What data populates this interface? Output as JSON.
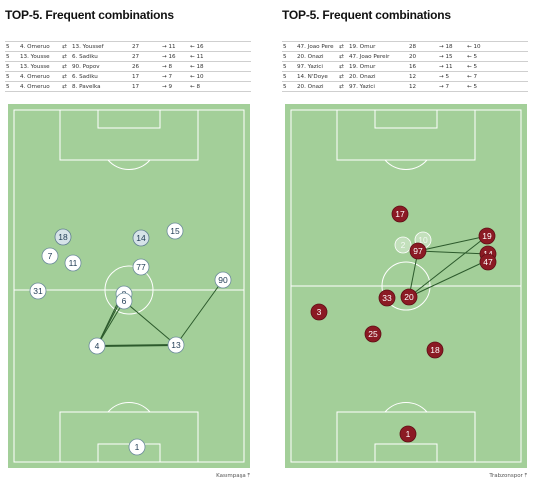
{
  "panels": [
    {
      "title": "TOP-5. Frequent combinations",
      "rows": [
        {
          "count": "5",
          "from": "4. Omeruo",
          "arrow": "⇄",
          "to": "13. Youssef",
          "total": "27",
          "pass_out": "→ 11",
          "pass_in": "← 16"
        },
        {
          "count": "5",
          "from": "13. Yousse",
          "arrow": "⇄",
          "to": "6. Sadiku",
          "total": "27",
          "pass_out": "→ 16",
          "pass_in": "← 11"
        },
        {
          "count": "5",
          "from": "13. Yousse",
          "arrow": "⇄",
          "to": "90. Popov",
          "total": "26",
          "pass_out": "→ 8",
          "pass_in": "← 18"
        },
        {
          "count": "5",
          "from": "4. Omeruo",
          "arrow": "⇄",
          "to": "6. Sadiku",
          "total": "17",
          "pass_out": "→ 7",
          "pass_in": "← 10"
        },
        {
          "count": "5",
          "from": "4. Omeruo",
          "arrow": "⇄",
          "to": "8. Pavelka",
          "total": "17",
          "pass_out": "→ 9",
          "pass_in": "← 8"
        }
      ],
      "players": [
        "18",
        "14",
        "15",
        "7",
        "11",
        "77",
        "31",
        "8",
        "6",
        "90",
        "4",
        "13",
        "1"
      ],
      "footer": "Kasımpaşa ⤒",
      "colors": {
        "pitch": "#a3cf99",
        "token_fill": "#ffffff",
        "token_alt": "#d6e3e8",
        "line": "#2c5a2c"
      }
    },
    {
      "title": "TOP-5. Frequent combinations",
      "rows": [
        {
          "count": "5",
          "from": "47. Joao Pere",
          "arrow": "⇄",
          "to": "19. Omur",
          "total": "28",
          "pass_out": "→ 18",
          "pass_in": "← 10"
        },
        {
          "count": "5",
          "from": "20. Onazi",
          "arrow": "⇄",
          "to": "47. Joao Pereir",
          "total": "20",
          "pass_out": "→ 15",
          "pass_in": "← 5"
        },
        {
          "count": "5",
          "from": "97. Yazici",
          "arrow": "⇄",
          "to": "19. Omur",
          "total": "16",
          "pass_out": "→ 11",
          "pass_in": "← 5"
        },
        {
          "count": "5",
          "from": "14. N'Doye",
          "arrow": "⇄",
          "to": "20. Onazi",
          "total": "12",
          "pass_out": "→ 5",
          "pass_in": "← 7"
        },
        {
          "count": "5",
          "from": "20. Onazi",
          "arrow": "⇄",
          "to": "97. Yazici",
          "total": "12",
          "pass_out": "→ 7",
          "pass_in": "← 5"
        }
      ],
      "players": [
        "17",
        "2",
        "10",
        "97",
        "19",
        "14",
        "47",
        "33",
        "20",
        "3",
        "25",
        "18",
        "1"
      ],
      "footer": "Trabzonspor ⤒",
      "colors": {
        "pitch": "#a3cf99",
        "token_fill": "#8b1a24",
        "token_text": "#ffffff",
        "line": "#2c5a2c"
      }
    }
  ]
}
